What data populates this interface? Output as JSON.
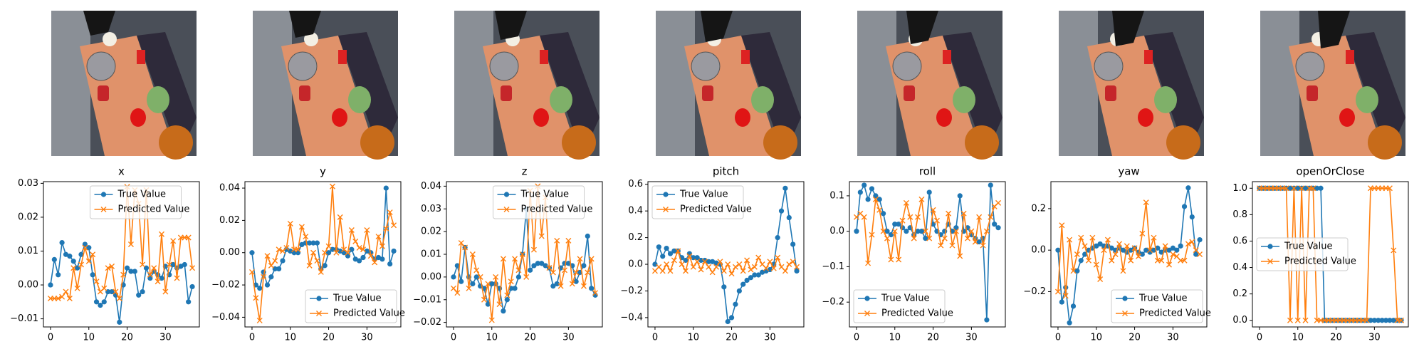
{
  "chart_data": [
    {
      "type": "line",
      "title": "x",
      "legend": "upper center",
      "x": [
        0,
        1,
        2,
        3,
        4,
        5,
        6,
        7,
        8,
        9,
        10,
        11,
        12,
        13,
        14,
        15,
        16,
        17,
        18,
        19,
        20,
        21,
        22,
        23,
        24,
        25,
        26,
        27,
        28,
        29,
        30,
        31,
        32,
        33,
        34,
        35,
        36,
        37
      ],
      "xlim": [
        -1.85,
        38.85
      ],
      "xticks": [
        0,
        10,
        20,
        30
      ],
      "ylim": [
        -0.0124,
        0.0305
      ],
      "yticks": [
        {
          "value": -0.01,
          "label": "−0.01"
        },
        {
          "value": 0,
          "label": "0.00"
        },
        {
          "value": 0.01,
          "label": "0.01"
        },
        {
          "value": 0.02,
          "label": "0.02"
        },
        {
          "value": 0.03,
          "label": "0.03"
        }
      ],
      "series": [
        {
          "name": "True Value",
          "color": "#1f77b4",
          "marker": "o",
          "values": [
            0.0,
            0.0075,
            0.003,
            0.0125,
            0.009,
            0.0085,
            0.007,
            0.005,
            0.009,
            0.012,
            0.011,
            0.003,
            -0.005,
            -0.006,
            -0.005,
            -0.002,
            -0.002,
            -0.003,
            -0.011,
            0.0,
            0.005,
            0.004,
            0.004,
            -0.003,
            -0.002,
            0.005,
            0.002,
            0.004,
            0.003,
            0.002,
            0.0055,
            0.003,
            0.006,
            0.005,
            0.0055,
            0.006,
            -0.005,
            -0.0005
          ]
        },
        {
          "name": "Predicted Value",
          "color": "#ff7f0e",
          "marker": "x",
          "values": [
            -0.004,
            -0.004,
            -0.004,
            -0.0035,
            -0.002,
            -0.004,
            0.005,
            -0.001,
            0.006,
            0.011,
            0.007,
            0.009,
            0.001,
            -0.002,
            -0.001,
            0.005,
            0.0055,
            -0.002,
            -0.004,
            0.003,
            0.029,
            0.012,
            0.028,
            0.024,
            0.006,
            0.028,
            0.003,
            0.005,
            0.001,
            0.015,
            -0.002,
            0.006,
            0.013,
            0.002,
            0.014,
            0.014,
            0.014,
            0.005
          ]
        }
      ]
    },
    {
      "type": "line",
      "title": "y",
      "legend": "lower right",
      "x": [
        0,
        1,
        2,
        3,
        4,
        5,
        6,
        7,
        8,
        9,
        10,
        11,
        12,
        13,
        14,
        15,
        16,
        17,
        18,
        19,
        20,
        21,
        22,
        23,
        24,
        25,
        26,
        27,
        28,
        29,
        30,
        31,
        32,
        33,
        34,
        35,
        36,
        37
      ],
      "xlim": [
        -1.85,
        38.85
      ],
      "xticks": [
        0,
        10,
        20,
        30
      ],
      "ylim": [
        -0.046,
        0.044
      ],
      "yticks": [
        {
          "value": -0.04,
          "label": "−0.04"
        },
        {
          "value": -0.02,
          "label": "−0.02"
        },
        {
          "value": 0,
          "label": "0.00"
        },
        {
          "value": 0.02,
          "label": "0.02"
        },
        {
          "value": 0.04,
          "label": "0.04"
        }
      ],
      "series": [
        {
          "name": "True Value",
          "color": "#1f77b4",
          "marker": "o",
          "values": [
            0.0,
            -0.02,
            -0.022,
            -0.012,
            -0.02,
            -0.015,
            -0.01,
            -0.01,
            -0.005,
            0.002,
            0.001,
            0.0,
            0.0,
            0.005,
            0.006,
            0.006,
            0.006,
            0.006,
            -0.01,
            -0.008,
            0.0,
            0.002,
            0.002,
            0.001,
            0.0,
            -0.002,
            0.002,
            -0.004,
            -0.005,
            -0.003,
            0.001,
            0.0,
            -0.004,
            -0.003,
            -0.004,
            0.04,
            -0.007,
            0.001
          ]
        },
        {
          "name": "Predicted Value",
          "color": "#ff7f0e",
          "marker": "x",
          "values": [
            -0.012,
            -0.028,
            -0.042,
            -0.015,
            -0.002,
            -0.008,
            -0.005,
            0.002,
            0.001,
            0.003,
            0.018,
            0.002,
            0.002,
            0.016,
            0.01,
            -0.008,
            0.0,
            -0.005,
            -0.012,
            0.0,
            0.004,
            0.041,
            0.0,
            0.022,
            0.002,
            0.0,
            0.014,
            0.007,
            0.003,
            0.002,
            0.014,
            -0.002,
            -0.006,
            0.01,
            0.004,
            0.015,
            0.025,
            0.017
          ]
        }
      ]
    },
    {
      "type": "line",
      "title": "z",
      "legend": "upper center",
      "x": [
        0,
        1,
        2,
        3,
        4,
        5,
        6,
        7,
        8,
        9,
        10,
        11,
        12,
        13,
        14,
        15,
        16,
        17,
        18,
        19,
        20,
        21,
        22,
        23,
        24,
        25,
        26,
        27,
        28,
        29,
        30,
        31,
        32,
        33,
        34,
        35,
        36,
        37
      ],
      "xlim": [
        -1.85,
        38.85
      ],
      "xticks": [
        0,
        10,
        20,
        30
      ],
      "ylim": [
        -0.022,
        0.042
      ],
      "yticks": [
        {
          "value": -0.02,
          "label": "−0.02"
        },
        {
          "value": -0.01,
          "label": "−0.01"
        },
        {
          "value": 0,
          "label": "0.00"
        },
        {
          "value": 0.01,
          "label": "0.01"
        },
        {
          "value": 0.02,
          "label": "0.02"
        },
        {
          "value": 0.03,
          "label": "0.03"
        },
        {
          "value": 0.04,
          "label": "0.04"
        }
      ],
      "series": [
        {
          "name": "True Value",
          "color": "#1f77b4",
          "marker": "o",
          "values": [
            0.0,
            0.005,
            -0.002,
            0.013,
            0.0,
            -0.003,
            0.0,
            -0.004,
            -0.005,
            -0.012,
            -0.003,
            -0.003,
            -0.005,
            -0.015,
            -0.01,
            -0.005,
            -0.005,
            0.0,
            0.01,
            0.03,
            0.003,
            0.005,
            0.006,
            0.006,
            0.005,
            0.004,
            -0.004,
            -0.003,
            0.004,
            0.006,
            0.006,
            0.005,
            -0.002,
            0.002,
            0.005,
            0.018,
            -0.005,
            -0.008
          ]
        },
        {
          "name": "Predicted Value",
          "color": "#ff7f0e",
          "marker": "x",
          "values": [
            -0.005,
            -0.007,
            0.015,
            0.013,
            -0.005,
            0.01,
            0.003,
            0.0,
            -0.01,
            -0.003,
            -0.019,
            0.0,
            -0.012,
            0.008,
            -0.008,
            -0.002,
            0.008,
            0.003,
            0.01,
            0.0,
            0.038,
            0.012,
            0.04,
            0.018,
            0.035,
            0.004,
            0.002,
            0.016,
            -0.004,
            0.003,
            0.016,
            -0.003,
            0.002,
            0.008,
            -0.004,
            0.002,
            0.008,
            -0.007
          ]
        }
      ]
    },
    {
      "type": "line",
      "title": "pitch",
      "legend": "upper left",
      "x": [
        0,
        1,
        2,
        3,
        4,
        5,
        6,
        7,
        8,
        9,
        10,
        11,
        12,
        13,
        14,
        15,
        16,
        17,
        18,
        19,
        20,
        21,
        22,
        23,
        24,
        25,
        26,
        27,
        28,
        29,
        30,
        31,
        32,
        33,
        34,
        35,
        36,
        37
      ],
      "xlim": [
        -1.85,
        38.85
      ],
      "xticks": [
        0,
        10,
        20,
        30
      ],
      "ylim": [
        -0.47,
        0.62
      ],
      "yticks": [
        {
          "value": -0.4,
          "label": "−0.4"
        },
        {
          "value": -0.2,
          "label": "−0.2"
        },
        {
          "value": 0,
          "label": "0.0"
        },
        {
          "value": 0.2,
          "label": "0.2"
        },
        {
          "value": 0.4,
          "label": "0.4"
        },
        {
          "value": 0.6,
          "label": "0.6"
        }
      ],
      "series": [
        {
          "name": "True Value",
          "color": "#1f77b4",
          "marker": "o",
          "values": [
            0.0,
            0.13,
            0.06,
            0.12,
            0.08,
            0.1,
            0.1,
            0.05,
            0.03,
            0.08,
            0.05,
            0.05,
            0.03,
            0.03,
            0.02,
            0.02,
            0.01,
            0.0,
            -0.17,
            -0.43,
            -0.4,
            -0.3,
            -0.2,
            -0.15,
            -0.12,
            -0.1,
            -0.08,
            -0.08,
            -0.06,
            -0.05,
            -0.04,
            0.0,
            0.2,
            0.4,
            0.57,
            0.35,
            0.15,
            -0.05
          ]
        },
        {
          "name": "Predicted Value",
          "color": "#ff7f0e",
          "marker": "x",
          "values": [
            -0.05,
            -0.02,
            -0.05,
            0.0,
            -0.05,
            0.03,
            0.1,
            0.0,
            -0.05,
            0.06,
            -0.02,
            0.02,
            -0.04,
            0.02,
            -0.02,
            -0.06,
            -0.02,
            0.02,
            -0.05,
            0.0,
            -0.07,
            -0.02,
            0.0,
            -0.05,
            0.03,
            -0.04,
            -0.02,
            0.05,
            0.0,
            -0.03,
            0.02,
            -0.03,
            0.05,
            -0.02,
            -0.05,
            0.0,
            0.02,
            -0.02
          ]
        }
      ]
    },
    {
      "type": "line",
      "title": "roll",
      "legend": "lower left",
      "x": [
        0,
        1,
        2,
        3,
        4,
        5,
        6,
        7,
        8,
        9,
        10,
        11,
        12,
        13,
        14,
        15,
        16,
        17,
        18,
        19,
        20,
        21,
        22,
        23,
        24,
        25,
        26,
        27,
        28,
        29,
        30,
        31,
        32,
        33,
        34,
        35,
        36,
        37
      ],
      "xlim": [
        -1.85,
        38.85
      ],
      "xticks": [
        0,
        10,
        20,
        30
      ],
      "ylim": [
        -0.27,
        0.14
      ],
      "yticks": [
        {
          "value": -0.2,
          "label": "−0.2"
        },
        {
          "value": -0.1,
          "label": "−0.1"
        },
        {
          "value": 0,
          "label": "0.0"
        },
        {
          "value": 0.1,
          "label": "0.1"
        }
      ],
      "series": [
        {
          "name": "True Value",
          "color": "#1f77b4",
          "marker": "o",
          "values": [
            0.0,
            0.11,
            0.13,
            0.09,
            0.12,
            0.1,
            0.09,
            0.05,
            0.0,
            -0.01,
            0.02,
            0.02,
            0.01,
            0.0,
            0.01,
            -0.01,
            0.0,
            0.0,
            -0.02,
            0.11,
            0.02,
            0.0,
            -0.01,
            0.0,
            0.02,
            0.0,
            0.01,
            0.1,
            0.0,
            0.01,
            -0.01,
            -0.02,
            -0.03,
            -0.02,
            -0.25,
            0.13,
            0.02,
            0.01
          ]
        },
        {
          "name": "Predicted Value",
          "color": "#ff7f0e",
          "marker": "x",
          "values": [
            0.04,
            0.05,
            0.04,
            -0.09,
            -0.01,
            0.09,
            0.06,
            0.0,
            -0.02,
            -0.08,
            0.0,
            -0.08,
            0.03,
            0.08,
            0.04,
            -0.02,
            0.04,
            0.09,
            0.0,
            -0.02,
            0.06,
            0.03,
            -0.04,
            -0.02,
            0.05,
            -0.04,
            0.0,
            -0.07,
            0.05,
            -0.02,
            0.0,
            -0.03,
            0.04,
            -0.04,
            0.0,
            0.04,
            0.07,
            0.08
          ]
        }
      ]
    },
    {
      "type": "line",
      "title": "yaw",
      "legend": "lower right",
      "x": [
        0,
        1,
        2,
        3,
        4,
        5,
        6,
        7,
        8,
        9,
        10,
        11,
        12,
        13,
        14,
        15,
        16,
        17,
        18,
        19,
        20,
        21,
        22,
        23,
        24,
        25,
        26,
        27,
        28,
        29,
        30,
        31,
        32,
        33,
        34,
        35,
        36,
        37
      ],
      "xlim": [
        -1.85,
        38.85
      ],
      "xticks": [
        0,
        10,
        20,
        30
      ],
      "ylim": [
        -0.37,
        0.33
      ],
      "yticks": [
        {
          "value": -0.2,
          "label": "−0.2"
        },
        {
          "value": 0,
          "label": "0.0"
        },
        {
          "value": 0.2,
          "label": "0.2"
        }
      ],
      "series": [
        {
          "name": "True Value",
          "color": "#1f77b4",
          "marker": "o",
          "values": [
            0.0,
            -0.25,
            -0.18,
            -0.35,
            -0.27,
            -0.1,
            -0.05,
            -0.02,
            0.0,
            0.01,
            0.02,
            0.03,
            0.02,
            0.02,
            0.01,
            0.0,
            0.01,
            0.0,
            -0.01,
            0.0,
            0.01,
            -0.01,
            -0.02,
            0.0,
            -0.01,
            0.0,
            0.01,
            -0.01,
            0.0,
            0.0,
            0.01,
            0.0,
            0.02,
            0.21,
            0.3,
            0.16,
            -0.02,
            0.05
          ]
        },
        {
          "name": "Predicted Value",
          "color": "#ff7f0e",
          "marker": "x",
          "values": [
            -0.2,
            0.12,
            -0.22,
            0.05,
            -0.1,
            -0.02,
            0.06,
            0.02,
            -0.05,
            0.06,
            -0.07,
            -0.14,
            0.0,
            0.05,
            -0.05,
            -0.02,
            0.03,
            -0.1,
            0.02,
            -0.05,
            0.01,
            -0.03,
            0.08,
            0.23,
            0.0,
            0.06,
            -0.05,
            -0.05,
            0.02,
            -0.07,
            -0.02,
            -0.03,
            -0.05,
            -0.05,
            0.03,
            0.04,
            0.0,
            -0.02
          ]
        }
      ]
    },
    {
      "type": "line",
      "title": "openOrClose",
      "legend": "center left",
      "x": [
        0,
        1,
        2,
        3,
        4,
        5,
        6,
        7,
        8,
        9,
        10,
        11,
        12,
        13,
        14,
        15,
        16,
        17,
        18,
        19,
        20,
        21,
        22,
        23,
        24,
        25,
        26,
        27,
        28,
        29,
        30,
        31,
        32,
        33,
        34,
        35,
        36,
        37
      ],
      "xlim": [
        -1.85,
        38.85
      ],
      "xticks": [
        0,
        10,
        20,
        30
      ],
      "ylim": [
        -0.05,
        1.05
      ],
      "yticks": [
        {
          "value": 0,
          "label": "0.0"
        },
        {
          "value": 0.2,
          "label": "0.2"
        },
        {
          "value": 0.4,
          "label": "0.4"
        },
        {
          "value": 0.6,
          "label": "0.6"
        },
        {
          "value": 0.8,
          "label": "0.8"
        },
        {
          "value": 1,
          "label": "1.0"
        }
      ],
      "series": [
        {
          "name": "True Value",
          "color": "#1f77b4",
          "marker": "o",
          "values": [
            1,
            1,
            1,
            1,
            1,
            1,
            1,
            1,
            1,
            1,
            1,
            1,
            1,
            1,
            1,
            1,
            1,
            0,
            0,
            0,
            0,
            0,
            0,
            0,
            0,
            0,
            0,
            0,
            0,
            0,
            0,
            0,
            0,
            0,
            0,
            0,
            0,
            0
          ]
        },
        {
          "name": "Predicted Value",
          "color": "#ff7f0e",
          "marker": "x",
          "values": [
            1,
            1,
            1,
            1,
            1,
            1,
            1,
            1,
            0,
            1,
            0,
            1,
            0,
            1,
            1,
            0,
            0,
            0,
            0,
            0,
            0,
            0,
            0,
            0,
            0,
            0,
            0,
            0,
            0,
            1,
            1,
            1,
            1,
            1,
            1,
            0.53,
            0,
            0
          ]
        }
      ]
    }
  ]
}
